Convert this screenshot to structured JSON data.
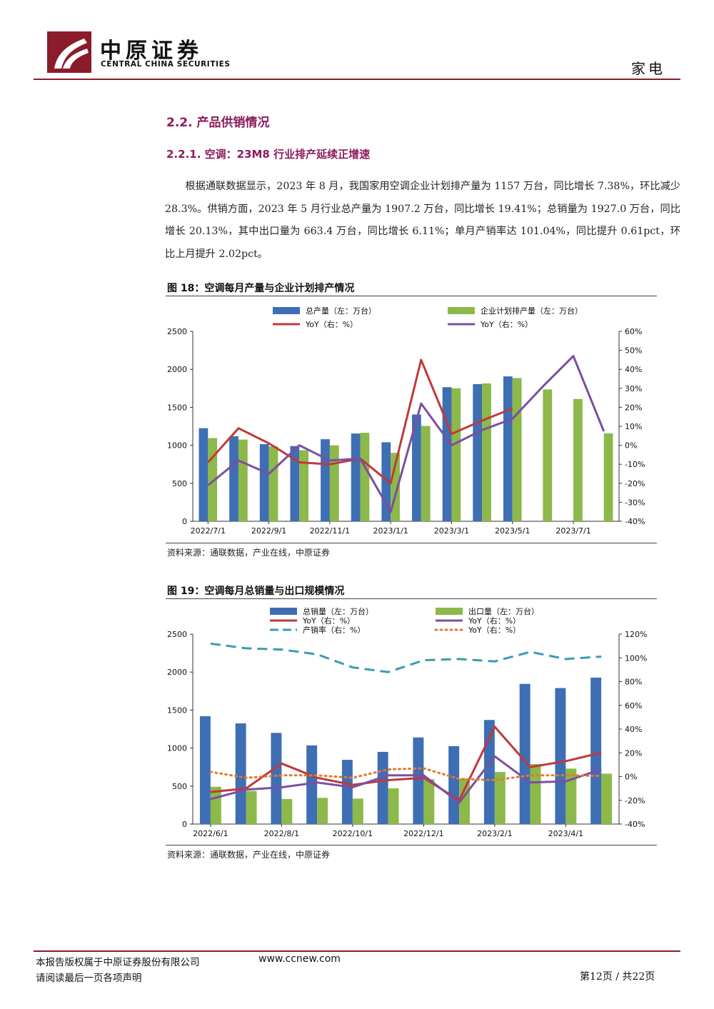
{
  "header": {
    "brand_cn": "中原证券",
    "brand_en": "CENTRAL CHINA SECURITIES",
    "category": "家电"
  },
  "section": {
    "heading": "2.2. 产品供销情况",
    "subheading": "2.2.1. 空调：23M8 行业排产延续正增速",
    "paragraph": "根据通联数据显示，2023 年 8 月，我国家用空调企业计划排产量为 1157 万台，同比增长 7.38%，环比减少 28.3%。供销方面，2023 年 5 月行业总产量为 1907.2 万台，同比增长 19.41%；总销量为 1927.0 万台，同比增长 20.13%，其中出口量为 663.4 万台，同比增长 6.11%；单月产销率达 101.04%，同比提升 0.61pct，环比上月提升 2.02pct。"
  },
  "figure18": {
    "title": "图 18：空调每月产量与企业计划排产情况",
    "source": "资料来源：通联数据，产业在线，中原证券"
  },
  "figure19": {
    "title": "图 19：空调每月总销量与出口规模情况",
    "source": "资料来源：通联数据，产业在线，中原证券"
  },
  "chart_data": [
    {
      "type": "bar",
      "categories": [
        "2022/7/1",
        "2022/8/1",
        "2022/9/1",
        "2022/10/1",
        "2022/11/1",
        "2022/12/1",
        "2023/1/1",
        "2023/2/1",
        "2023/3/1",
        "2023/4/1",
        "2023/5/1",
        "2023/6/1",
        "2023/7/1",
        "2023/8/1"
      ],
      "x_tick_labels": [
        "2022/7/1",
        "2022/9/1",
        "2022/11/1",
        "2023/1/1",
        "2023/3/1",
        "2023/5/1",
        "2023/7/1"
      ],
      "ylim_left": [
        0,
        2500
      ],
      "yticks_left": [
        "0",
        "500",
        "1000",
        "1500",
        "2000",
        "2500"
      ],
      "ylim_right": [
        -40,
        60
      ],
      "yticks_right": [
        "-40%",
        "-30%",
        "-20%",
        "-10%",
        "0%",
        "10%",
        "20%",
        "30%",
        "40%",
        "50%",
        "60%"
      ],
      "series": [
        {
          "name": "总产量（左：万台）",
          "kind": "bar",
          "axis": "left",
          "color": "#3e6eb4",
          "values": [
            1225,
            1120,
            1015,
            990,
            1080,
            1155,
            1040,
            1405,
            1765,
            1805,
            1907,
            null,
            null,
            null
          ]
        },
        {
          "name": "企业计划排产量（左：万台）",
          "kind": "bar",
          "axis": "left",
          "color": "#8db84a",
          "values": [
            1095,
            1075,
            985,
            935,
            1000,
            1165,
            900,
            1255,
            1750,
            1815,
            1885,
            1735,
            1610,
            1157
          ]
        },
        {
          "name": "YoY（右：%）",
          "kind": "line",
          "axis": "right",
          "color": "#c0393b",
          "values": [
            -9,
            9,
            1,
            -9,
            -10,
            -7,
            -20,
            45,
            6,
            13,
            19.41,
            null,
            null,
            null
          ]
        },
        {
          "name": "YoY（右：%）",
          "kind": "line",
          "axis": "right",
          "color": "#7b4fa0",
          "values": [
            -21,
            -8,
            -15,
            0,
            -8,
            -7,
            -35,
            22,
            0,
            8,
            14,
            31,
            47,
            7.38
          ]
        }
      ]
    },
    {
      "type": "bar",
      "categories": [
        "2022/6/1",
        "2022/7/1",
        "2022/8/1",
        "2022/9/1",
        "2022/10/1",
        "2022/11/1",
        "2022/12/1",
        "2023/1/1",
        "2023/2/1",
        "2023/3/1",
        "2023/4/1",
        "2023/5/1"
      ],
      "x_tick_labels": [
        "2022/6/1",
        "2022/8/1",
        "2022/10/1",
        "2022/12/1",
        "2023/2/1",
        "2023/4/1"
      ],
      "ylim_left": [
        0,
        2500
      ],
      "yticks_left": [
        "0",
        "500",
        "1000",
        "1500",
        "2000",
        "2500"
      ],
      "ylim_right": [
        -40,
        120
      ],
      "yticks_right": [
        "-40%",
        "-20%",
        "0%",
        "20%",
        "40%",
        "60%",
        "80%",
        "100%",
        "120%"
      ],
      "series": [
        {
          "name": "总销量（左：万台）",
          "kind": "bar",
          "axis": "left",
          "color": "#3e6eb4",
          "values": [
            1420,
            1325,
            1200,
            1035,
            845,
            950,
            1140,
            1025,
            1370,
            1845,
            1790,
            1927
          ]
        },
        {
          "name": "出口量（左：万台）",
          "kind": "bar",
          "axis": "left",
          "color": "#8db84a",
          "values": [
            490,
            435,
            330,
            345,
            335,
            470,
            590,
            600,
            685,
            790,
            730,
            663.4
          ]
        },
        {
          "name": "YoY（右：%）",
          "kind": "line",
          "axis": "right",
          "color": "#c0393b",
          "values": [
            -13,
            -10,
            11,
            -1,
            -7,
            -3,
            -1,
            -20,
            42,
            8,
            13,
            20.13
          ]
        },
        {
          "name": "YoY（右：%）",
          "kind": "line",
          "axis": "right",
          "color": "#7b4fa0",
          "values": [
            -19,
            -11,
            -9,
            -5,
            -9,
            1,
            1,
            -22,
            17,
            -5,
            -4,
            6.11
          ]
        },
        {
          "name": "产销率（右：%）",
          "kind": "dash",
          "axis": "right",
          "color": "#3a9bb5",
          "values": [
            112,
            108,
            107,
            103,
            92,
            88,
            98,
            99,
            97,
            105,
            99,
            101.04
          ]
        },
        {
          "name": "YoY（右：%）",
          "kind": "dot",
          "axis": "right",
          "color": "#e07a2c",
          "values": [
            4,
            -1,
            1,
            1,
            -1,
            6,
            7,
            -2,
            -3,
            1,
            1,
            0.61
          ]
        }
      ]
    }
  ],
  "footer": {
    "copyright": "本报告版权属于中原证券股份有限公司",
    "url": "www.ccnew.com",
    "disclaimer": "请阅读最后一页各项声明",
    "page": "第12页  / 共22页"
  }
}
